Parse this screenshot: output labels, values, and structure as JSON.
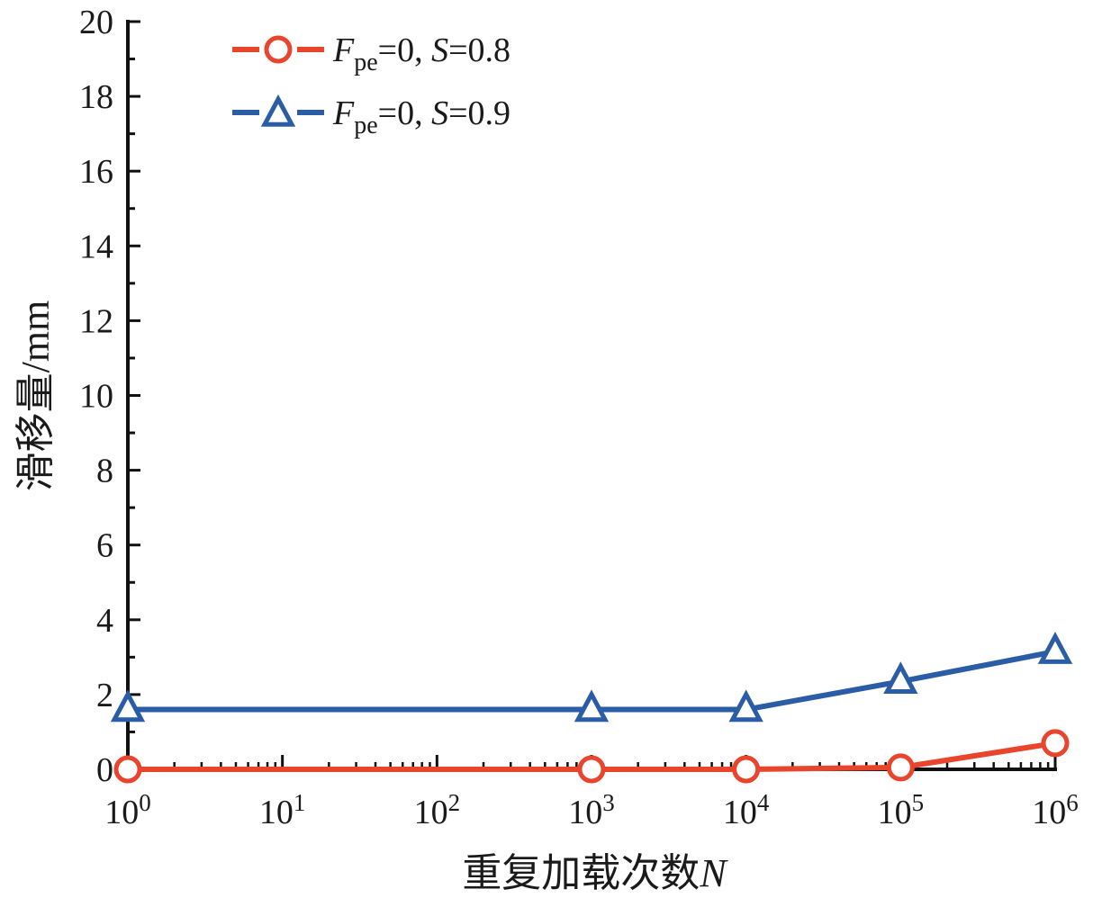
{
  "chart_data": {
    "type": "line",
    "x_scale": "log",
    "x": [
      1,
      1000,
      10000,
      100000,
      1000000
    ],
    "x_tick_labels": [
      {
        "base": "10",
        "exp": "0",
        "value": 1
      },
      {
        "base": "10",
        "exp": "1",
        "value": 10
      },
      {
        "base": "10",
        "exp": "2",
        "value": 100
      },
      {
        "base": "10",
        "exp": "3",
        "value": 1000
      },
      {
        "base": "10",
        "exp": "4",
        "value": 10000
      },
      {
        "base": "10",
        "exp": "5",
        "value": 100000
      },
      {
        "base": "10",
        "exp": "6",
        "value": 1000000
      }
    ],
    "y_ticks": [
      "0",
      "2",
      "4",
      "6",
      "8",
      "10",
      "12",
      "14",
      "16",
      "18",
      "20"
    ],
    "xlim": [
      1,
      1000000
    ],
    "ylim": [
      0,
      20
    ],
    "xlabel": {
      "text": "重复加载次数",
      "var": "N"
    },
    "ylabel": "滑移量/mm",
    "grid": false,
    "legend_position": "top-left",
    "series": [
      {
        "label": {
          "var": "F",
          "sub": "pe",
          "rest": "=0, ",
          "var2": "S",
          "rest2": "=0.8"
        },
        "marker": "circle",
        "color": "#e8452c",
        "values": [
          0,
          0,
          0,
          0.05,
          0.7
        ]
      },
      {
        "label": {
          "var": "F",
          "sub": "pe",
          "rest": "=0, ",
          "var2": "S",
          "rest2": "=0.9"
        },
        "marker": "triangle",
        "color": "#2a5da6",
        "values": [
          1.6,
          1.6,
          1.6,
          2.35,
          3.15
        ]
      }
    ]
  }
}
